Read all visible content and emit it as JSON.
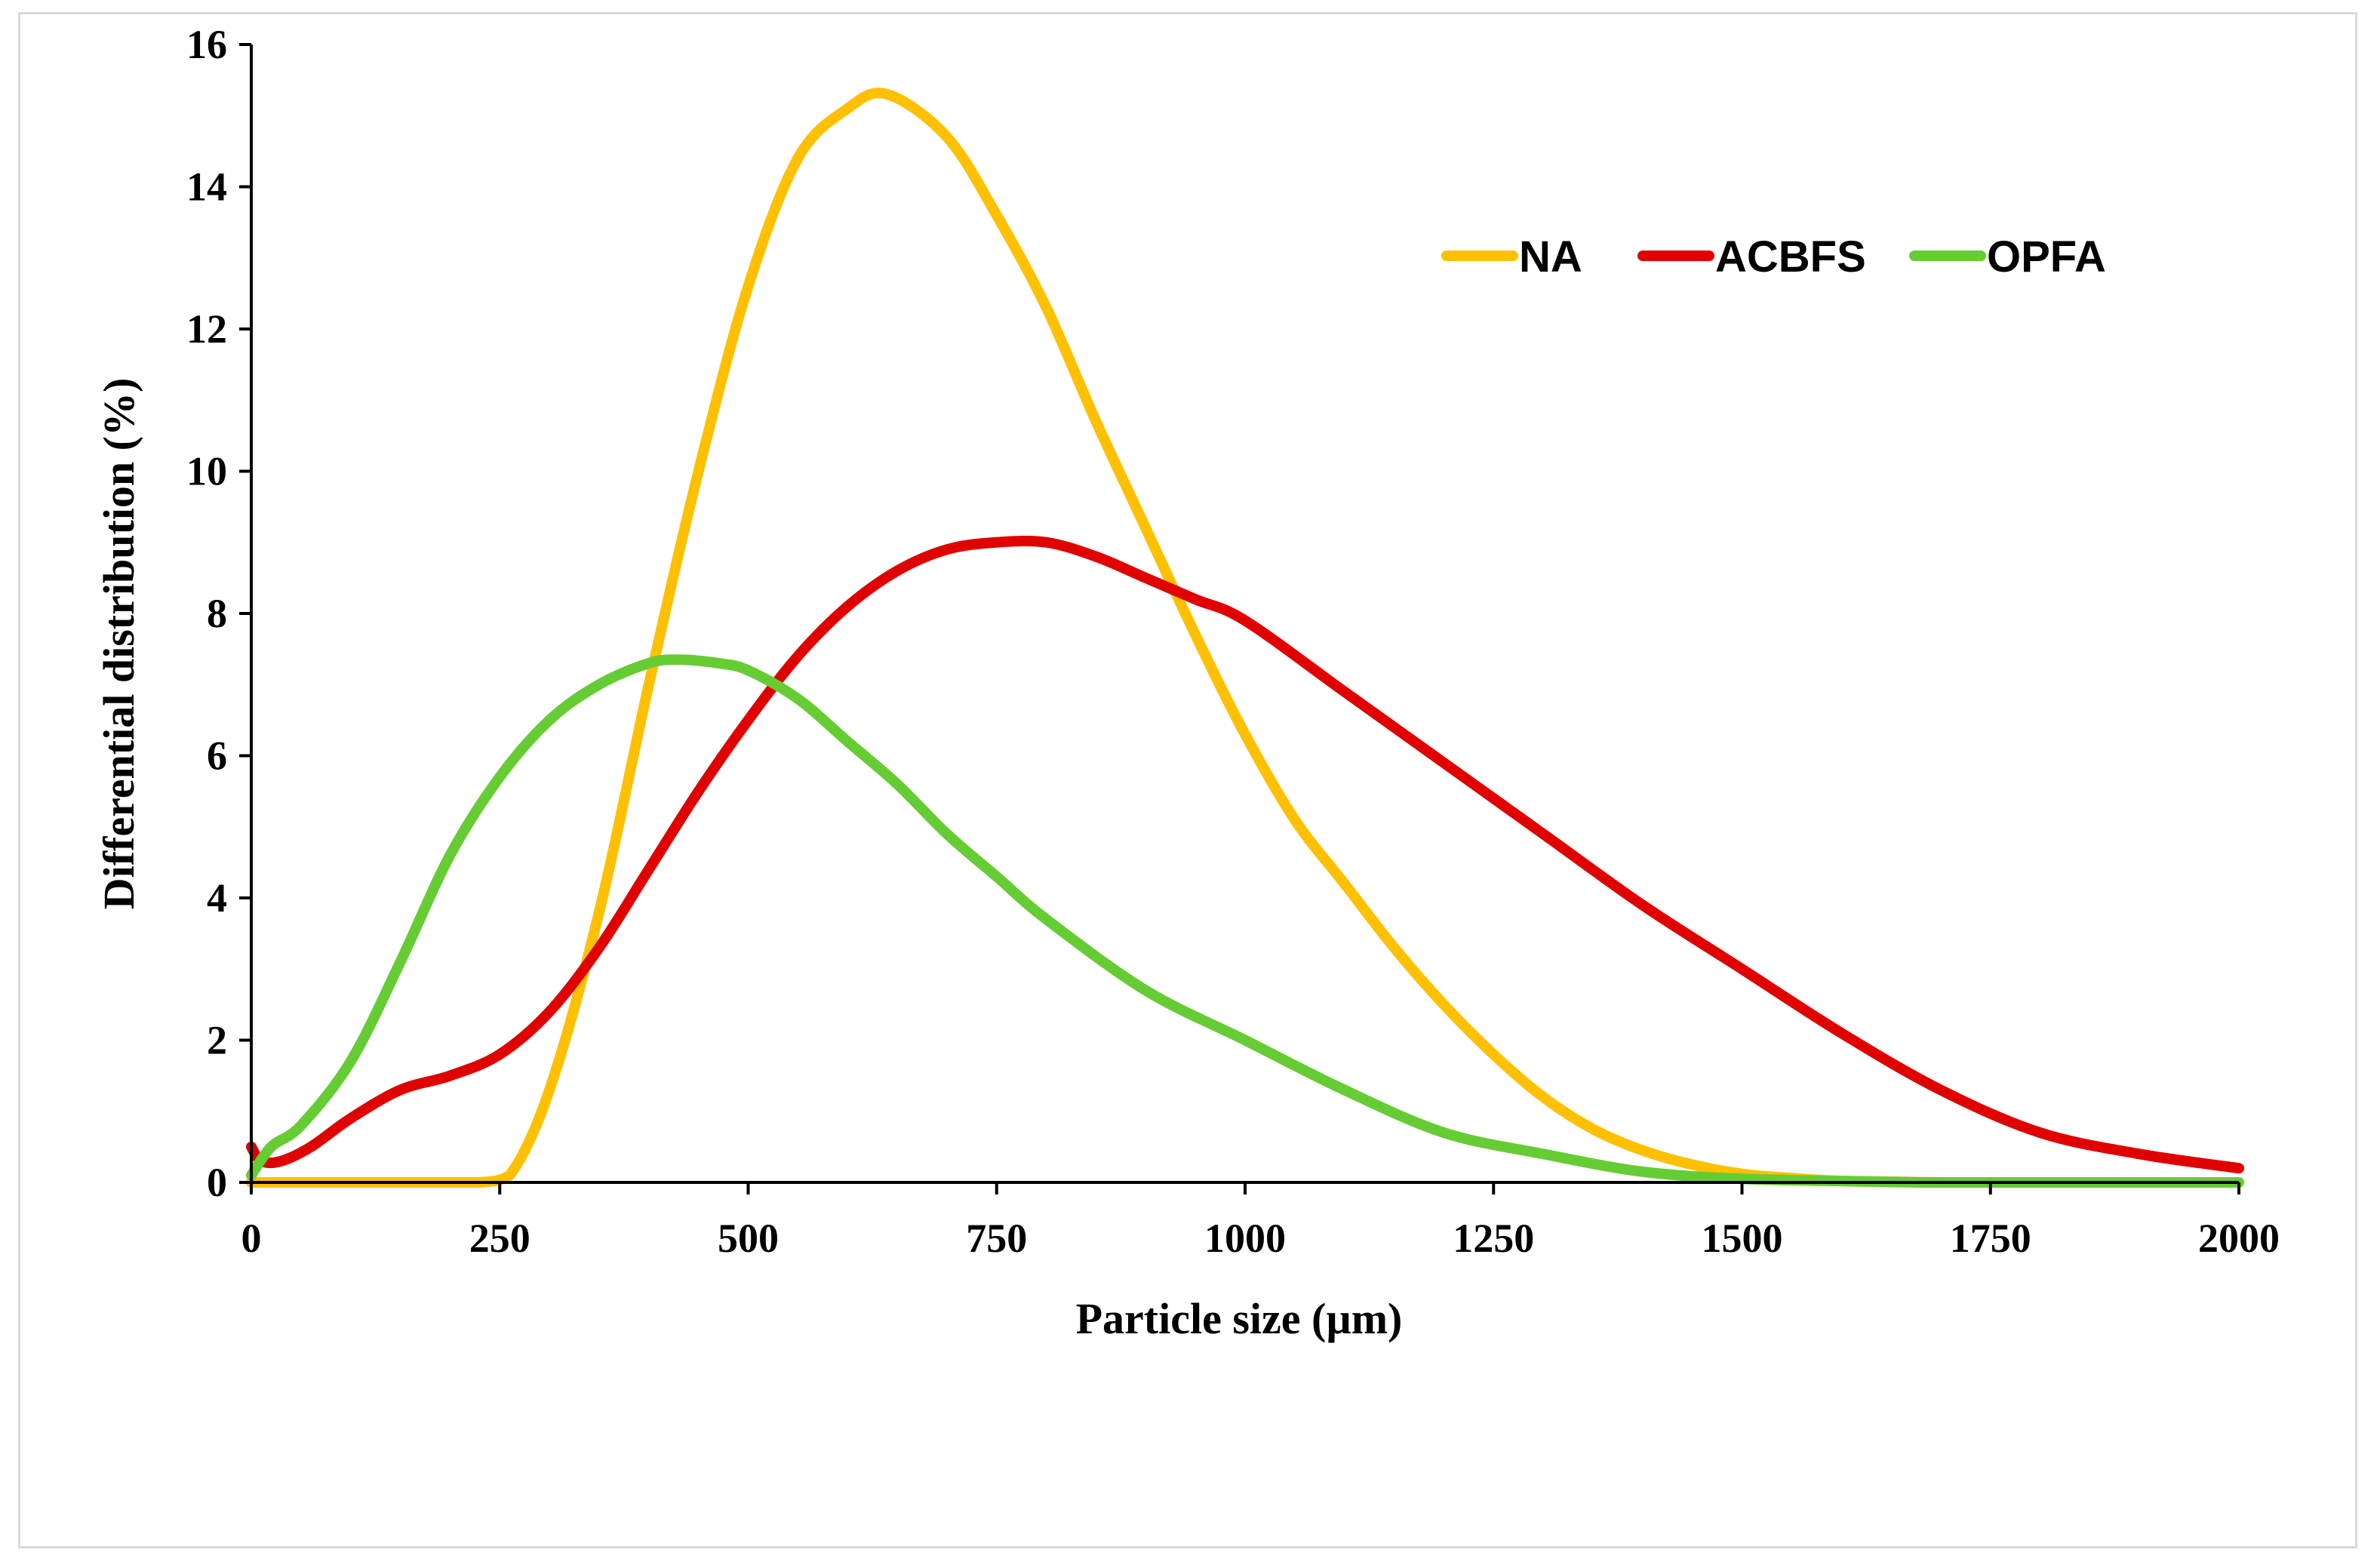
{
  "chart_data": {
    "type": "line",
    "title": "",
    "xlabel": "Particle size (µm)",
    "ylabel": "Differential distribution (%)",
    "xlim": [
      0,
      2000
    ],
    "ylim": [
      0,
      16
    ],
    "xticks": [
      0,
      250,
      500,
      750,
      1000,
      1250,
      1500,
      1750,
      2000
    ],
    "yticks": [
      0,
      2,
      4,
      6,
      8,
      10,
      12,
      14,
      16
    ],
    "grid": false,
    "legend_position": "top-right",
    "series": [
      {
        "name": "NA",
        "color": "#ffc000",
        "x": [
          0,
          100,
          200,
          230,
          260,
          300,
          350,
          400,
          450,
          500,
          550,
          600,
          640,
          700,
          750,
          800,
          850,
          900,
          950,
          1000,
          1050,
          1100,
          1150,
          1200,
          1250,
          1300,
          1350,
          1400,
          1450,
          1500,
          1550,
          1600,
          1650,
          1700,
          1750,
          2000
        ],
        "y": [
          0,
          0,
          0,
          0,
          0.1,
          1.3,
          3.8,
          7.0,
          10.0,
          12.6,
          14.4,
          15.1,
          15.3,
          14.7,
          13.6,
          12.3,
          10.7,
          9.2,
          7.7,
          6.3,
          5.1,
          4.2,
          3.3,
          2.5,
          1.8,
          1.2,
          0.75,
          0.45,
          0.25,
          0.12,
          0.06,
          0.02,
          0.01,
          0,
          0,
          0
        ]
      },
      {
        "name": "ACBFS",
        "color": "#e00000",
        "x": [
          0,
          10,
          30,
          60,
          100,
          150,
          200,
          250,
          300,
          350,
          400,
          450,
          500,
          550,
          600,
          650,
          700,
          750,
          800,
          850,
          900,
          950,
          1000,
          1100,
          1200,
          1300,
          1400,
          1500,
          1600,
          1700,
          1800,
          1900,
          2000
        ],
        "y": [
          0.5,
          0.3,
          0.3,
          0.5,
          0.9,
          1.3,
          1.5,
          1.8,
          2.4,
          3.3,
          4.4,
          5.5,
          6.5,
          7.4,
          8.1,
          8.6,
          8.9,
          9.0,
          9.0,
          8.8,
          8.5,
          8.2,
          7.9,
          6.9,
          5.9,
          4.9,
          3.9,
          3.0,
          2.1,
          1.3,
          0.7,
          0.4,
          0.2
        ]
      },
      {
        "name": "OPFA",
        "color": "#66cc33",
        "x": [
          0,
          20,
          50,
          100,
          150,
          200,
          250,
          300,
          350,
          400,
          430,
          470,
          500,
          550,
          600,
          650,
          700,
          750,
          800,
          900,
          1000,
          1100,
          1200,
          1300,
          1400,
          1500,
          1600,
          1700,
          2000
        ],
        "y": [
          0.1,
          0.5,
          0.8,
          1.7,
          3.1,
          4.6,
          5.7,
          6.5,
          7.0,
          7.3,
          7.35,
          7.3,
          7.2,
          6.8,
          6.2,
          5.6,
          4.9,
          4.3,
          3.7,
          2.7,
          2.0,
          1.3,
          0.7,
          0.4,
          0.15,
          0.05,
          0.02,
          0,
          0
        ]
      }
    ]
  }
}
